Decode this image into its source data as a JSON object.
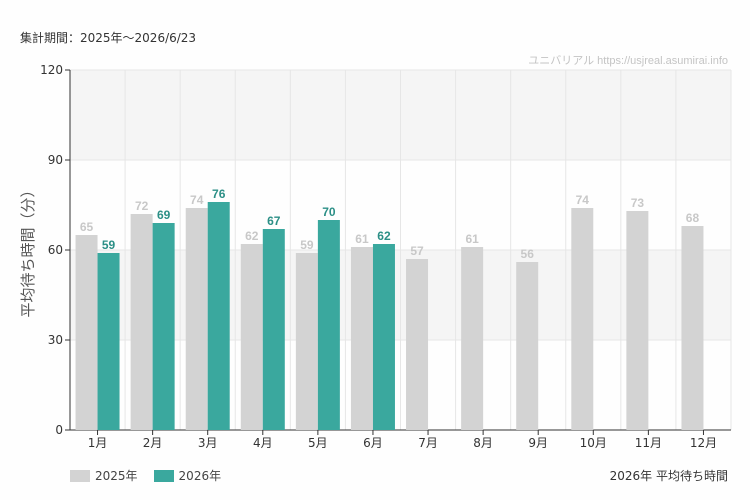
{
  "header": {
    "period": "集計期間：2025年～2026/6/23",
    "watermark": "ユニバリアル  https://usjreal.asumirai.info"
  },
  "footer": {
    "title": "2026年 平均待ち時間"
  },
  "colors": {
    "series_2025": "#d3d3d3",
    "series_2026": "#3aa89e",
    "label_2025": "#c8c8c8",
    "label_2026": "#2b8f86"
  },
  "chart_data": {
    "type": "bar",
    "title": "",
    "xlabel": "",
    "ylabel": "平均待ち時間（分）",
    "ylim": [
      0,
      120
    ],
    "yticks": [
      0,
      30,
      60,
      90,
      120
    ],
    "grid": true,
    "legend_position": "bottom-left",
    "categories": [
      "1月",
      "2月",
      "3月",
      "4月",
      "5月",
      "6月",
      "7月",
      "8月",
      "9月",
      "10月",
      "11月",
      "12月"
    ],
    "series": [
      {
        "name": "2025年",
        "values": [
          65,
          72,
          74,
          62,
          59,
          61,
          57,
          61,
          56,
          74,
          73,
          68
        ]
      },
      {
        "name": "2026年",
        "values": [
          59,
          69,
          76,
          67,
          70,
          62,
          null,
          null,
          null,
          null,
          null,
          null
        ]
      }
    ]
  }
}
